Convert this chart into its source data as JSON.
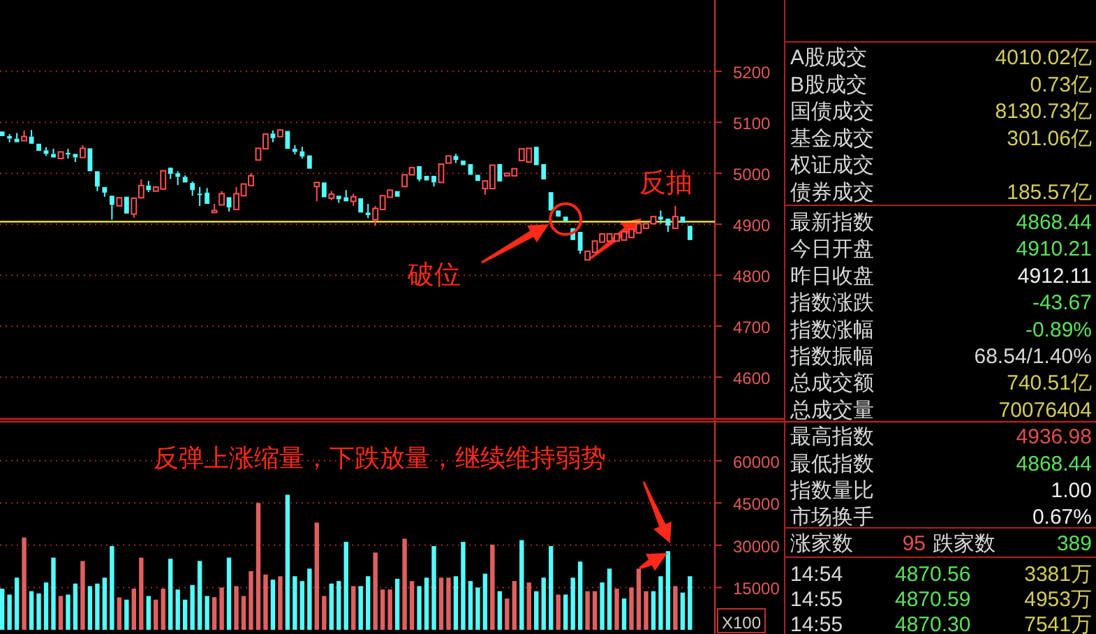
{
  "chart_data": [
    {
      "type": "candlestick",
      "categories": [
        null,
        null,
        null,
        null,
        null,
        null,
        null,
        null,
        null,
        null,
        null,
        null,
        null,
        null,
        null,
        null,
        null,
        null,
        null,
        null,
        null,
        null,
        null,
        null,
        null,
        null,
        null,
        null,
        null,
        null,
        null,
        null,
        null,
        null,
        null,
        null,
        null,
        null,
        null,
        null,
        null,
        null,
        null,
        null,
        null,
        null,
        null,
        null,
        null,
        null,
        null,
        null,
        null,
        null,
        null,
        null,
        null,
        null,
        null,
        null,
        null,
        null,
        null,
        null,
        null,
        null,
        null,
        null,
        null,
        null,
        null,
        null,
        null,
        null,
        null,
        null,
        null,
        null,
        null,
        null,
        null,
        null,
        null,
        null,
        null,
        null,
        null,
        null,
        null,
        null,
        null,
        null,
        null,
        null,
        null
      ],
      "ohlc": [
        [
          5082,
          5082,
          5073,
          5073
        ],
        [
          5073,
          5077,
          5061,
          5068
        ],
        [
          5068,
          5079,
          5061,
          5061
        ],
        [
          5064,
          5084,
          5064,
          5072
        ],
        [
          5072,
          5085,
          5058,
          5058
        ],
        [
          5058,
          5058,
          5044,
          5044
        ],
        [
          5045,
          5051,
          5034,
          5038
        ],
        [
          5038,
          5048,
          5031,
          5031
        ],
        [
          5029,
          5042,
          5029,
          5042
        ],
        [
          5040,
          5048,
          5029,
          5037
        ],
        [
          5038,
          5038,
          5022,
          5031
        ],
        [
          5031,
          5055,
          5031,
          5049
        ],
        [
          5049,
          5049,
          5004,
          5004
        ],
        [
          5004,
          5004,
          4965,
          4974
        ],
        [
          4973,
          4973,
          4954,
          4962
        ],
        [
          4956,
          4956,
          4909,
          4938
        ],
        [
          4936,
          4952,
          4936,
          4952
        ],
        [
          4954,
          4954,
          4921,
          4921
        ],
        [
          4920,
          4951,
          4913,
          4951
        ],
        [
          4952,
          4988,
          4952,
          4976
        ],
        [
          4976,
          4985,
          4963,
          4967
        ],
        [
          4965,
          4973,
          4965,
          4973
        ],
        [
          4969,
          5005,
          4969,
          5005
        ],
        [
          5011,
          5011,
          4989,
          4999
        ],
        [
          5000,
          5004,
          4977,
          4993
        ],
        [
          4993,
          4996,
          4982,
          4982
        ],
        [
          4981,
          4984,
          4956,
          4967
        ],
        [
          4960,
          4973,
          4936,
          4958
        ],
        [
          4962,
          4971,
          4940,
          4940
        ],
        [
          4923,
          4940,
          4922,
          4927
        ],
        [
          4938,
          4965,
          4938,
          4960
        ],
        [
          4953,
          4953,
          4925,
          4933
        ],
        [
          4929,
          4973,
          4929,
          4960
        ],
        [
          4956,
          4979,
          4956,
          4979
        ],
        [
          4976,
          5000,
          4976,
          4995
        ],
        [
          5026,
          5049,
          5026,
          5049
        ],
        [
          5048,
          5077,
          5048,
          5077
        ],
        [
          5078,
          5084,
          5061,
          5069
        ],
        [
          5072,
          5085,
          5072,
          5085
        ],
        [
          5083,
          5083,
          5048,
          5048
        ],
        [
          5048,
          5055,
          5037,
          5042
        ],
        [
          5043,
          5052,
          5029,
          5033
        ],
        [
          5035,
          5035,
          5009,
          5009
        ],
        [
          4974,
          4982,
          4945,
          4982
        ],
        [
          4982,
          4982,
          4953,
          4953
        ],
        [
          4951,
          4965,
          4947,
          4959
        ],
        [
          4956,
          4956,
          4942,
          4949
        ],
        [
          4953,
          4967,
          4945,
          4945
        ],
        [
          4945,
          4960,
          4936,
          4954
        ],
        [
          4951,
          4951,
          4923,
          4923
        ],
        [
          4923,
          4940,
          4912,
          4918
        ],
        [
          4909,
          4936,
          4897,
          4931
        ],
        [
          4929,
          4956,
          4929,
          4956
        ],
        [
          4953,
          4967,
          4953,
          4967
        ],
        [
          4965,
          4965,
          4954,
          4954
        ],
        [
          4974,
          4997,
          4974,
          4997
        ],
        [
          4997,
          5011,
          4997,
          5011
        ],
        [
          5014,
          5014,
          4984,
          4988
        ],
        [
          4995,
          4995,
          4986,
          4986
        ],
        [
          4995,
          4995,
          4974,
          4982
        ],
        [
          4982,
          5018,
          4982,
          5018
        ],
        [
          5020,
          5034,
          5020,
          5034
        ],
        [
          5034,
          5038,
          5020,
          5026
        ],
        [
          5025,
          5025,
          5016,
          5016
        ],
        [
          5018,
          5018,
          4997,
          4997
        ],
        [
          4997,
          4997,
          4985,
          4985
        ],
        [
          4970,
          4985,
          4958,
          4985
        ],
        [
          4970,
          5016,
          4970,
          5016
        ],
        [
          5018,
          5018,
          4984,
          4984
        ],
        [
          4995,
          5000,
          4995,
          5000
        ],
        [
          4995,
          5009,
          4995,
          5009
        ],
        [
          5025,
          5048,
          5025,
          5048
        ],
        [
          5022,
          5049,
          5022,
          5049
        ],
        [
          5052,
          5052,
          5016,
          5016
        ],
        [
          5018,
          5018,
          4988,
          4988
        ],
        [
          4963,
          4963,
          4927,
          4927
        ],
        [
          4927,
          4927,
          4915,
          4915
        ],
        [
          4915,
          4915,
          4906,
          4906
        ],
        [
          4892,
          4892,
          4869,
          4869
        ],
        [
          4885,
          4885,
          4842,
          4848
        ],
        [
          4830,
          4847,
          4830,
          4847
        ],
        [
          4845,
          4867,
          4845,
          4867
        ],
        [
          4865,
          4881,
          4865,
          4881
        ],
        [
          4867,
          4881,
          4867,
          4881
        ],
        [
          4867,
          4881,
          4867,
          4881
        ],
        [
          4869,
          4885,
          4869,
          4885
        ],
        [
          4874,
          4890,
          4874,
          4890
        ],
        [
          4883,
          4901,
          4883,
          4901
        ],
        [
          4892,
          4901,
          4892,
          4901
        ],
        [
          4901,
          4915,
          4901,
          4915
        ],
        [
          4915,
          4927,
          4901,
          4909
        ],
        [
          4911,
          4911,
          4885,
          4897
        ],
        [
          4892,
          4936,
          4892,
          4915
        ],
        [
          4915,
          4915,
          4903,
          4903
        ],
        [
          4897,
          4897,
          4869,
          4869
        ]
      ],
      "colors": [
        "#54fcfc",
        "#54fcfc",
        "#54fcfc",
        "#ff5050",
        "#54fcfc",
        "#54fcfc",
        "#54fcfc",
        "#54fcfc",
        "#ff5050",
        "#54fcfc",
        "#54fcfc",
        "#ff5050",
        "#54fcfc",
        "#54fcfc",
        "#54fcfc",
        "#54fcfc",
        "#ff5050",
        "#54fcfc",
        "#ff5050",
        "#ff5050",
        "#54fcfc",
        "#ff5050",
        "#ff5050",
        "#54fcfc",
        "#54fcfc",
        "#54fcfc",
        "#54fcfc",
        "#54fcfc",
        "#54fcfc",
        "#ff5050",
        "#ff5050",
        "#54fcfc",
        "#ff5050",
        "#ff5050",
        "#ff5050",
        "#ff5050",
        "#ff5050",
        "#54fcfc",
        "#ff5050",
        "#54fcfc",
        "#54fcfc",
        "#54fcfc",
        "#54fcfc",
        "#ff5050",
        "#54fcfc",
        "#ff5050",
        "#54fcfc",
        "#54fcfc",
        "#ff5050",
        "#54fcfc",
        "#54fcfc",
        "#ff5050",
        "#ff5050",
        "#ff5050",
        "#54fcfc",
        "#ff5050",
        "#ff5050",
        "#54fcfc",
        "#54fcfc",
        "#54fcfc",
        "#ff5050",
        "#ff5050",
        "#54fcfc",
        "#54fcfc",
        "#54fcfc",
        "#54fcfc",
        "#ff5050",
        "#ff5050",
        "#54fcfc",
        "#ff5050",
        "#ff5050",
        "#ff5050",
        "#ff5050",
        "#54fcfc",
        "#54fcfc",
        "#54fcfc",
        "#54fcfc",
        "#54fcfc",
        "#54fcfc",
        "#54fcfc",
        "#ff5050",
        "#ff5050",
        "#ff5050",
        "#ff5050",
        "#ff5050",
        "#ff5050",
        "#ff5050",
        "#ff5050",
        "#ff5050",
        "#ff5050",
        "#54fcfc",
        "#54fcfc",
        "#ff5050",
        "#54fcfc",
        "#54fcfc"
      ],
      "ylim": [
        4518,
        5340
      ],
      "yticks": [
        4600,
        4700,
        4800,
        4900,
        5000,
        5100,
        5200
      ],
      "grid": "y",
      "ref_lines": [
        {
          "axis": "y",
          "value": 4905,
          "color": "#e8dc50"
        }
      ],
      "annotations": [
        "破位",
        "反抽"
      ]
    },
    {
      "type": "bar",
      "categories": [
        null,
        null,
        null,
        null,
        null,
        null,
        null,
        null,
        null,
        null,
        null,
        null,
        null,
        null,
        null,
        null,
        null,
        null,
        null,
        null,
        null,
        null,
        null,
        null,
        null,
        null,
        null,
        null,
        null,
        null,
        null,
        null,
        null,
        null,
        null,
        null,
        null,
        null,
        null,
        null,
        null,
        null,
        null,
        null,
        null,
        null,
        null,
        null,
        null,
        null,
        null,
        null,
        null,
        null,
        null,
        null,
        null,
        null,
        null,
        null,
        null,
        null,
        null,
        null,
        null,
        null,
        null,
        null,
        null,
        null,
        null,
        null,
        null,
        null,
        null,
        null,
        null,
        null,
        null,
        null,
        null,
        null,
        null,
        null,
        null,
        null,
        null,
        null,
        null,
        null,
        null,
        null,
        null,
        null,
        null
      ],
      "values": [
        14600,
        12500,
        18500,
        32700,
        13700,
        12900,
        16800,
        25600,
        12000,
        12500,
        16400,
        24400,
        15500,
        16400,
        18500,
        29700,
        11500,
        10700,
        14600,
        25600,
        12000,
        10700,
        14600,
        25200,
        14300,
        10700,
        15900,
        24400,
        12000,
        11600,
        15000,
        25600,
        15500,
        12000,
        20800,
        45000,
        19600,
        17800,
        19000,
        47900,
        19000,
        17300,
        21700,
        38000,
        12000,
        16400,
        17300,
        31200,
        15500,
        15500,
        19000,
        27400,
        14300,
        14300,
        18100,
        32300,
        17300,
        15500,
        18500,
        29700,
        18500,
        18500,
        19000,
        31200,
        17300,
        15000,
        19900,
        30200,
        13700,
        11100,
        17300,
        31800,
        16800,
        13700,
        18500,
        29700,
        12500,
        12500,
        18500,
        24200,
        13700,
        13700,
        16800,
        21700,
        14600,
        11100,
        15000,
        21700,
        13700,
        13700,
        19000,
        27900,
        15500,
        13200,
        19000
      ],
      "colors": [
        "#54fcfc",
        "#54fcfc",
        "#54fcfc",
        "#e06060",
        "#54fcfc",
        "#54fcfc",
        "#54fcfc",
        "#54fcfc",
        "#e06060",
        "#54fcfc",
        "#54fcfc",
        "#e06060",
        "#54fcfc",
        "#54fcfc",
        "#54fcfc",
        "#54fcfc",
        "#e06060",
        "#54fcfc",
        "#e06060",
        "#e06060",
        "#54fcfc",
        "#e06060",
        "#e06060",
        "#54fcfc",
        "#54fcfc",
        "#54fcfc",
        "#54fcfc",
        "#54fcfc",
        "#54fcfc",
        "#e06060",
        "#e06060",
        "#54fcfc",
        "#e06060",
        "#e06060",
        "#e06060",
        "#e06060",
        "#e06060",
        "#54fcfc",
        "#e06060",
        "#54fcfc",
        "#54fcfc",
        "#54fcfc",
        "#54fcfc",
        "#e06060",
        "#e06060",
        "#54fcfc",
        "#54fcfc",
        "#54fcfc",
        "#e06060",
        "#54fcfc",
        "#54fcfc",
        "#e06060",
        "#e06060",
        "#e06060",
        "#54fcfc",
        "#e06060",
        "#e06060",
        "#54fcfc",
        "#54fcfc",
        "#54fcfc",
        "#e06060",
        "#e06060",
        "#54fcfc",
        "#54fcfc",
        "#54fcfc",
        "#54fcfc",
        "#54fcfc",
        "#e06060",
        "#54fcfc",
        "#e06060",
        "#e06060",
        "#54fcfc",
        "#e06060",
        "#54fcfc",
        "#54fcfc",
        "#54fcfc",
        "#e06060",
        "#54fcfc",
        "#54fcfc",
        "#54fcfc",
        "#e06060",
        "#e06060",
        "#54fcfc",
        "#54fcfc",
        "#e06060",
        "#54fcfc",
        "#e06060",
        "#e06060",
        "#e06060",
        "#54fcfc",
        "#54fcfc",
        "#54fcfc",
        "#e06060",
        "#54fcfc",
        "#54fcfc"
      ],
      "ylim": [
        0,
        73800
      ],
      "yticks": [
        15000,
        30000,
        45000,
        60000
      ],
      "grid": "y",
      "ylabel": "X100",
      "annotations": [
        "反弹上涨缩量，下跌放量，继续维持弱势"
      ]
    },
    {
      "type": "other",
      "annotations": [
        "A股成交",
        "4010.02亿",
        "B股成交",
        "0.73亿",
        "国债成交",
        "8130.73亿",
        "基金成交",
        "301.06亿",
        "权证成交",
        "债券成交",
        "185.57亿",
        "最新指数",
        "4868.44",
        "今日开盘",
        "4910.21",
        "昨日收盘",
        "4912.11",
        "指数涨跌",
        "-43.67",
        "指数涨幅",
        "-0.89%",
        "指数振幅",
        "68.54/1.40%",
        "总成交额",
        "740.51亿",
        "总成交量",
        "70076404",
        "最高指数",
        "4936.98",
        "最低指数",
        "4868.44",
        "指数量比",
        "1.00",
        "市场换手",
        "0.67%",
        "涨家数",
        "95",
        "跌家数",
        "389",
        "14:54",
        "4870.56",
        "3381万",
        "14:55",
        "4870.59",
        "4953万",
        "14:55",
        "4870.30",
        "7541万"
      ],
      "colors": [
        "#d8d8d8",
        "#d4cc5c",
        "#d8d8d8",
        "#d4cc5c",
        "#d8d8d8",
        "#d4cc5c",
        "#d8d8d8",
        "#d4cc5c",
        "#d8d8d8",
        "#d8d8d8",
        "#d4cc5c",
        "#d8d8d8",
        "#5ce05c",
        "#d8d8d8",
        "#5ce05c",
        "#d8d8d8",
        "#f0f0f0",
        "#d8d8d8",
        "#5ce05c",
        "#d8d8d8",
        "#5ce05c",
        "#d8d8d8",
        "#d8d8d8",
        "#d8d8d8",
        "#d4cc5c",
        "#d8d8d8",
        "#d4cc5c",
        "#d8d8d8",
        "#e05050",
        "#d8d8d8",
        "#5ce05c",
        "#d8d8d8",
        "#f0f0f0",
        "#d8d8d8",
        "#f0f0f0",
        "#d8d8d8",
        "#e05050",
        "#d8d8d8",
        "#5ce05c",
        "#d8d8d8",
        "#5ce05c",
        "#d4cc5c",
        "#d8d8d8",
        "#5ce05c",
        "#d4cc5c",
        "#d8d8d8",
        "#5ce05c",
        "#d4cc5c"
      ]
    }
  ]
}
